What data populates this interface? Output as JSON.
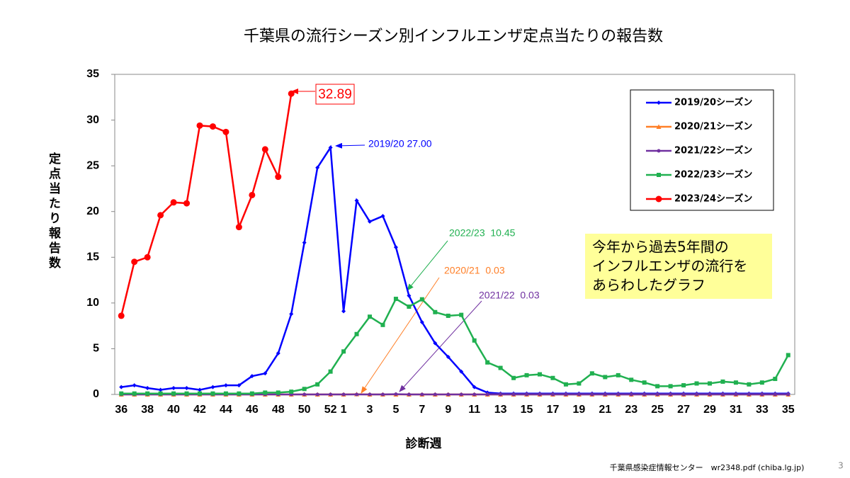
{
  "chart_data": {
    "type": "line",
    "title": "千葉県の流行シーズン別インフルエンザ定点当たりの報告数",
    "y_label": "定点当たり報告数",
    "x_label": "診断週",
    "categories": [
      "36",
      null,
      "38",
      null,
      "40",
      null,
      "42",
      null,
      "44",
      null,
      "46",
      null,
      "48",
      null,
      "50",
      null,
      "52",
      "1",
      null,
      "3",
      null,
      "5",
      null,
      "7",
      null,
      "9",
      null,
      "11",
      null,
      "13",
      null,
      "15",
      null,
      "17",
      null,
      "19",
      null,
      "21",
      null,
      "23",
      null,
      "25",
      null,
      "27",
      null,
      "29",
      null,
      "31",
      null,
      "33",
      null,
      "35"
    ],
    "ylim": [
      0,
      35
    ],
    "yticks": [
      0,
      5,
      10,
      15,
      20,
      25,
      30,
      35
    ],
    "legend_position": "upper right",
    "series": [
      {
        "name": "2019/20シーズン",
        "color": "#0000ff",
        "marker": "diamond",
        "values": [
          0.8,
          1.0,
          0.7,
          0.5,
          0.7,
          0.7,
          0.5,
          0.8,
          1.0,
          1.0,
          2.0,
          2.3,
          4.5,
          8.8,
          16.6,
          24.8,
          27.0,
          9.1,
          21.2,
          18.9,
          19.5,
          16.1,
          10.8,
          7.9,
          5.6,
          4.1,
          2.5,
          0.8,
          0.2,
          0.1,
          0.1,
          0.1,
          0.1,
          0.1,
          0.1,
          0.1,
          0.1,
          0.1,
          0.1,
          0.1,
          0.1,
          0.1,
          0.1,
          0.1,
          0.1,
          0.1,
          0.1,
          0.1,
          0.1,
          0.1,
          0.1,
          0.1
        ]
      },
      {
        "name": "2020/21シーズン",
        "color": "#ff7f27",
        "marker": "triangle",
        "values": [
          0.0,
          0.0,
          0.0,
          0.0,
          0.0,
          0.0,
          0.0,
          0.0,
          0.0,
          0.0,
          0.0,
          0.0,
          0.0,
          0.0,
          0.0,
          0.0,
          0.0,
          0.0,
          0.03,
          0.0,
          0.0,
          0.0,
          0.0,
          0.0,
          0.0,
          0.0,
          0.0,
          0.0,
          0.0,
          0.0,
          0.0,
          0.0,
          0.0,
          0.0,
          0.0,
          0.0,
          0.0,
          0.0,
          0.0,
          0.0,
          0.0,
          0.0,
          0.0,
          0.0,
          0.0,
          0.0,
          0.0,
          0.0,
          0.0,
          0.0,
          0.0,
          0.0
        ]
      },
      {
        "name": "2021/22シーズン",
        "color": "#7030a0",
        "marker": "circle",
        "values": [
          0.0,
          0.0,
          0.0,
          0.0,
          0.0,
          0.0,
          0.0,
          0.0,
          0.0,
          0.0,
          0.0,
          0.0,
          0.0,
          0.0,
          0.0,
          0.0,
          0.0,
          0.0,
          0.0,
          0.0,
          0.0,
          0.03,
          0.0,
          0.0,
          0.0,
          0.0,
          0.0,
          0.0,
          0.0,
          0.0,
          0.0,
          0.0,
          0.0,
          0.0,
          0.0,
          0.0,
          0.0,
          0.0,
          0.0,
          0.0,
          0.0,
          0.0,
          0.0,
          0.0,
          0.0,
          0.0,
          0.0,
          0.0,
          0.0,
          0.0,
          0.0,
          0.0
        ]
      },
      {
        "name": "2022/23シーズン",
        "color": "#20b050",
        "marker": "square",
        "values": [
          0.1,
          0.1,
          0.1,
          0.1,
          0.1,
          0.1,
          0.1,
          0.1,
          0.1,
          0.1,
          0.1,
          0.2,
          0.2,
          0.3,
          0.6,
          1.1,
          2.5,
          4.7,
          6.6,
          8.5,
          7.6,
          10.45,
          9.6,
          10.4,
          9.0,
          8.6,
          8.7,
          5.9,
          3.5,
          2.9,
          1.8,
          2.1,
          2.2,
          1.8,
          1.1,
          1.2,
          2.3,
          1.9,
          2.1,
          1.6,
          1.3,
          0.9,
          0.9,
          1.0,
          1.2,
          1.2,
          1.4,
          1.3,
          1.1,
          1.3,
          1.7,
          4.3
        ]
      },
      {
        "name": "2023/24シーズン",
        "color": "#ff0000",
        "marker": "bigcircle",
        "values": [
          8.6,
          14.5,
          15.0,
          19.6,
          21.0,
          20.9,
          29.4,
          29.3,
          28.7,
          18.3,
          21.8,
          26.8,
          23.8,
          32.89,
          null,
          null,
          null,
          null,
          null,
          null,
          null,
          null,
          null,
          null,
          null,
          null,
          null,
          null,
          null,
          null,
          null,
          null,
          null,
          null,
          null,
          null,
          null,
          null,
          null,
          null,
          null,
          null,
          null,
          null,
          null,
          null,
          null,
          null,
          null,
          null,
          null,
          null
        ]
      }
    ],
    "annotations": [
      "32.89",
      "2019/20 27.00",
      "2022/23  10.45",
      "2020/21  0.03",
      "2021/22  0.03"
    ],
    "note": [
      "今年から過去5年間の",
      "インフルエンザの流行を",
      "あらわしたグラフ"
    ]
  },
  "footer": "千葉県感染症情報センター　wr2348.pdf (chiba.lg.jp)",
  "page_number": "3"
}
